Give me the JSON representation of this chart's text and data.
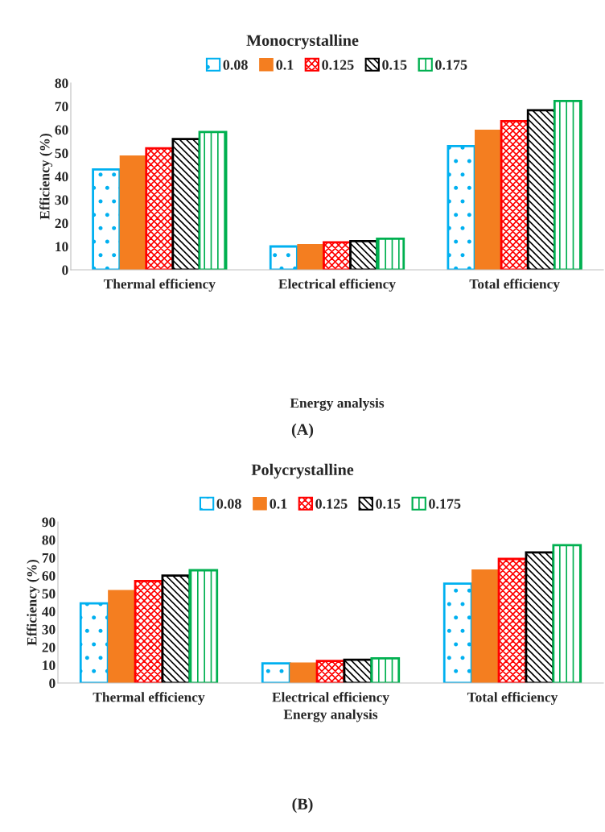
{
  "chart_data": [
    {
      "type": "bar",
      "title": "Monocrystalline",
      "xlabel": "Energy analysis",
      "ylabel": "Efficiency (%)",
      "categories": [
        "Thermal efficiency",
        "Electrical efficiency",
        "Total efficiency"
      ],
      "series": [
        {
          "name": "0.08",
          "color": "#00b0f0",
          "values": [
            43,
            10,
            53
          ]
        },
        {
          "name": "0.1",
          "color": "#f47e20",
          "values": [
            49,
            11,
            60
          ]
        },
        {
          "name": "0.125",
          "color": "#ff0000",
          "values": [
            52,
            11.8,
            63.7
          ]
        },
        {
          "name": "0.15",
          "color": "#000000",
          "values": [
            56,
            12.3,
            68.3
          ]
        },
        {
          "name": "0.175",
          "color": "#00b050",
          "values": [
            59,
            13.3,
            72.3
          ]
        }
      ],
      "ylim": [
        0,
        80
      ],
      "yticks": [
        0,
        10,
        20,
        30,
        40,
        50,
        60,
        70,
        80
      ],
      "grid": false,
      "legend": "top",
      "annotations": [
        "(A)"
      ]
    },
    {
      "type": "bar",
      "title": "Polycrystalline",
      "xlabel": "Energy analysis",
      "ylabel": "Efficiency (%)",
      "categories": [
        "Thermal efficiency",
        "Electrical efficiency",
        "Total efficiency"
      ],
      "series": [
        {
          "name": "0.08",
          "color": "#00b0f0",
          "values": [
            44.5,
            11,
            55.5
          ]
        },
        {
          "name": "0.1",
          "color": "#f47e20",
          "values": [
            52,
            11.5,
            63.5
          ]
        },
        {
          "name": "0.125",
          "color": "#ff0000",
          "values": [
            57,
            12.3,
            69.3
          ]
        },
        {
          "name": "0.15",
          "color": "#000000",
          "values": [
            60,
            13,
            73
          ]
        },
        {
          "name": "0.175",
          "color": "#00b050",
          "values": [
            63,
            13.8,
            77
          ]
        }
      ],
      "ylim": [
        0,
        90
      ],
      "yticks": [
        0,
        10,
        20,
        30,
        40,
        50,
        60,
        70,
        80,
        90
      ],
      "grid": false,
      "legend": "top",
      "annotations": [
        "(B)"
      ]
    }
  ]
}
